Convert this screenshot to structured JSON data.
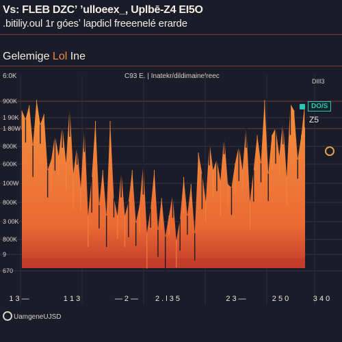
{
  "header": {
    "title": "Vs: FLEB DZCʼ ʼulloeex_, Uplbē-Z4 EI5O",
    "subtitle": ".bitiliy.oul 1r góesʼ lapdicl freeenelé erarde"
  },
  "panel": {
    "title_main": "Gelemige ",
    "title_accent": "Lol",
    "title_tail": " Ine",
    "stat_left": "6:0K",
    "stat_center": "C93 E. | Inatekr/dildimainelreec"
  },
  "legend": {
    "label": "DIlI3",
    "badge": "DO/S",
    "note": "Z5"
  },
  "footer": {
    "ticker": "UamgeneUJSD"
  },
  "colors": {
    "background": "#1b1c2a",
    "area_top": "#f0883a",
    "area_bottom": "#c23a2a",
    "line": "#f08a3a",
    "legend_accent": "#2bc6b4",
    "rule": "#7a3a34"
  },
  "chart_data": {
    "type": "area",
    "title": "",
    "xlabel": "",
    "ylabel": "",
    "y_tick_labels": [
      "900K",
      "1 90K",
      "1 80W",
      "800K",
      "600K",
      "100W",
      "800K",
      "3 00K",
      "800K",
      "9",
      "670"
    ],
    "x_tick_labels": [
      "1 3 —",
      "1 1 3",
      "— 2 —",
      "2 . l 3 5",
      "2 3 —",
      "2 5 0",
      "3 4 0"
    ],
    "ylim": [
      0,
      1000
    ],
    "grid": true,
    "series": [
      {
        "values": [
          900,
          850,
          930,
          700,
          960,
          820,
          880,
          560,
          620,
          760,
          640,
          820,
          600,
          930,
          540,
          700,
          460,
          820,
          300,
          520,
          840,
          360,
          560,
          300,
          840,
          400,
          300,
          560,
          300,
          380,
          560,
          260,
          360,
          600,
          200,
          340,
          560,
          220,
          400,
          180,
          300,
          420,
          160,
          280,
          520,
          300,
          480,
          200,
          660,
          540,
          380,
          720,
          560,
          620,
          500,
          760,
          480,
          460,
          600,
          700,
          560,
          820,
          380,
          560,
          760,
          600,
          960,
          540,
          760,
          800,
          640,
          840,
          520,
          940,
          900,
          620,
          760,
          960
        ]
      }
    ]
  }
}
